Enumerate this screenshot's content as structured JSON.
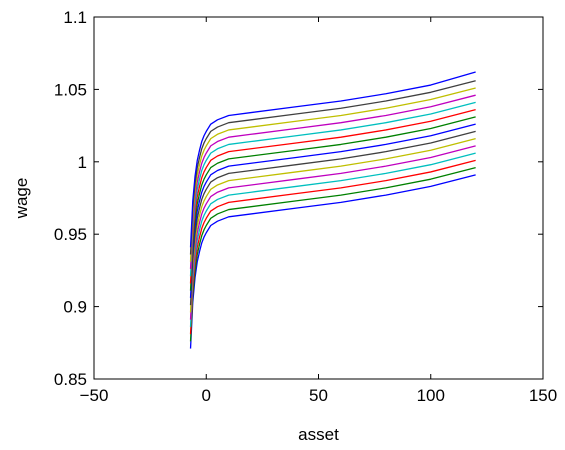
{
  "chart_data": {
    "type": "line",
    "title": "",
    "xlabel": "asset",
    "ylabel": "wage",
    "xlim": [
      -50,
      150
    ],
    "ylim": [
      0.85,
      1.1
    ],
    "xticks": [
      -50,
      0,
      50,
      100,
      150
    ],
    "xtick_labels": [
      "−50",
      "0",
      "50",
      "100",
      "150"
    ],
    "yticks": [
      0.85,
      0.9,
      0.95,
      1.0,
      1.05,
      1.1
    ],
    "ytick_labels": [
      "0.85",
      "0.9",
      "0.95",
      "1",
      "1.05",
      "1.1"
    ],
    "grid": false,
    "legend": "none",
    "x": [
      -7,
      -6,
      -5,
      -4,
      -3,
      -2,
      -1,
      0,
      2,
      5,
      10,
      20,
      40,
      60,
      80,
      100,
      120
    ],
    "series": [
      {
        "color": "#0000ff",
        "values": [
          0.871,
          0.903,
          0.92,
          0.931,
          0.938,
          0.944,
          0.948,
          0.951,
          0.956,
          0.959,
          0.962,
          0.964,
          0.968,
          0.972,
          0.977,
          0.983,
          0.991
        ]
      },
      {
        "color": "#008000",
        "values": [
          0.876,
          0.908,
          0.925,
          0.936,
          0.943,
          0.949,
          0.953,
          0.956,
          0.961,
          0.964,
          0.967,
          0.969,
          0.973,
          0.977,
          0.982,
          0.988,
          0.996
        ]
      },
      {
        "color": "#ff0000",
        "values": [
          0.881,
          0.913,
          0.93,
          0.941,
          0.948,
          0.954,
          0.958,
          0.961,
          0.966,
          0.969,
          0.972,
          0.974,
          0.978,
          0.982,
          0.987,
          0.993,
          1.001
        ]
      },
      {
        "color": "#00bfbf",
        "values": [
          0.886,
          0.918,
          0.935,
          0.946,
          0.953,
          0.959,
          0.963,
          0.966,
          0.971,
          0.974,
          0.977,
          0.979,
          0.983,
          0.987,
          0.992,
          0.998,
          1.006
        ]
      },
      {
        "color": "#bf00bf",
        "values": [
          0.891,
          0.923,
          0.94,
          0.951,
          0.958,
          0.964,
          0.968,
          0.971,
          0.976,
          0.979,
          0.982,
          0.984,
          0.988,
          0.992,
          0.997,
          1.003,
          1.011
        ]
      },
      {
        "color": "#bfbf00",
        "values": [
          0.896,
          0.928,
          0.945,
          0.956,
          0.963,
          0.969,
          0.973,
          0.976,
          0.981,
          0.984,
          0.987,
          0.989,
          0.993,
          0.997,
          1.002,
          1.008,
          1.016
        ]
      },
      {
        "color": "#404040",
        "values": [
          0.901,
          0.933,
          0.95,
          0.961,
          0.968,
          0.974,
          0.978,
          0.981,
          0.986,
          0.989,
          0.992,
          0.994,
          0.998,
          1.002,
          1.007,
          1.013,
          1.021
        ]
      },
      {
        "color": "#0000ff",
        "values": [
          0.906,
          0.938,
          0.955,
          0.966,
          0.973,
          0.979,
          0.983,
          0.986,
          0.991,
          0.994,
          0.997,
          0.999,
          1.003,
          1.007,
          1.012,
          1.018,
          1.026
        ]
      },
      {
        "color": "#008000",
        "values": [
          0.911,
          0.943,
          0.96,
          0.971,
          0.978,
          0.984,
          0.988,
          0.991,
          0.996,
          0.999,
          1.002,
          1.004,
          1.008,
          1.012,
          1.017,
          1.023,
          1.031
        ]
      },
      {
        "color": "#ff0000",
        "values": [
          0.916,
          0.948,
          0.965,
          0.976,
          0.983,
          0.989,
          0.993,
          0.996,
          1.001,
          1.004,
          1.007,
          1.009,
          1.013,
          1.017,
          1.022,
          1.028,
          1.036
        ]
      },
      {
        "color": "#00bfbf",
        "values": [
          0.921,
          0.953,
          0.97,
          0.981,
          0.988,
          0.994,
          0.998,
          1.001,
          1.006,
          1.009,
          1.012,
          1.014,
          1.018,
          1.022,
          1.027,
          1.033,
          1.041
        ]
      },
      {
        "color": "#bf00bf",
        "values": [
          0.926,
          0.958,
          0.975,
          0.986,
          0.993,
          0.999,
          1.003,
          1.006,
          1.011,
          1.014,
          1.017,
          1.019,
          1.023,
          1.027,
          1.032,
          1.038,
          1.046
        ]
      },
      {
        "color": "#bfbf00",
        "values": [
          0.931,
          0.963,
          0.98,
          0.991,
          0.998,
          1.004,
          1.008,
          1.011,
          1.016,
          1.019,
          1.022,
          1.024,
          1.028,
          1.032,
          1.037,
          1.043,
          1.051
        ]
      },
      {
        "color": "#404040",
        "values": [
          0.936,
          0.968,
          0.985,
          0.996,
          1.003,
          1.009,
          1.013,
          1.016,
          1.021,
          1.024,
          1.027,
          1.029,
          1.033,
          1.037,
          1.042,
          1.048,
          1.056
        ]
      },
      {
        "color": "#0000ff",
        "values": [
          0.941,
          0.973,
          0.99,
          1.001,
          1.008,
          1.014,
          1.018,
          1.021,
          1.026,
          1.029,
          1.032,
          1.034,
          1.038,
          1.042,
          1.047,
          1.053,
          1.062
        ]
      }
    ]
  }
}
